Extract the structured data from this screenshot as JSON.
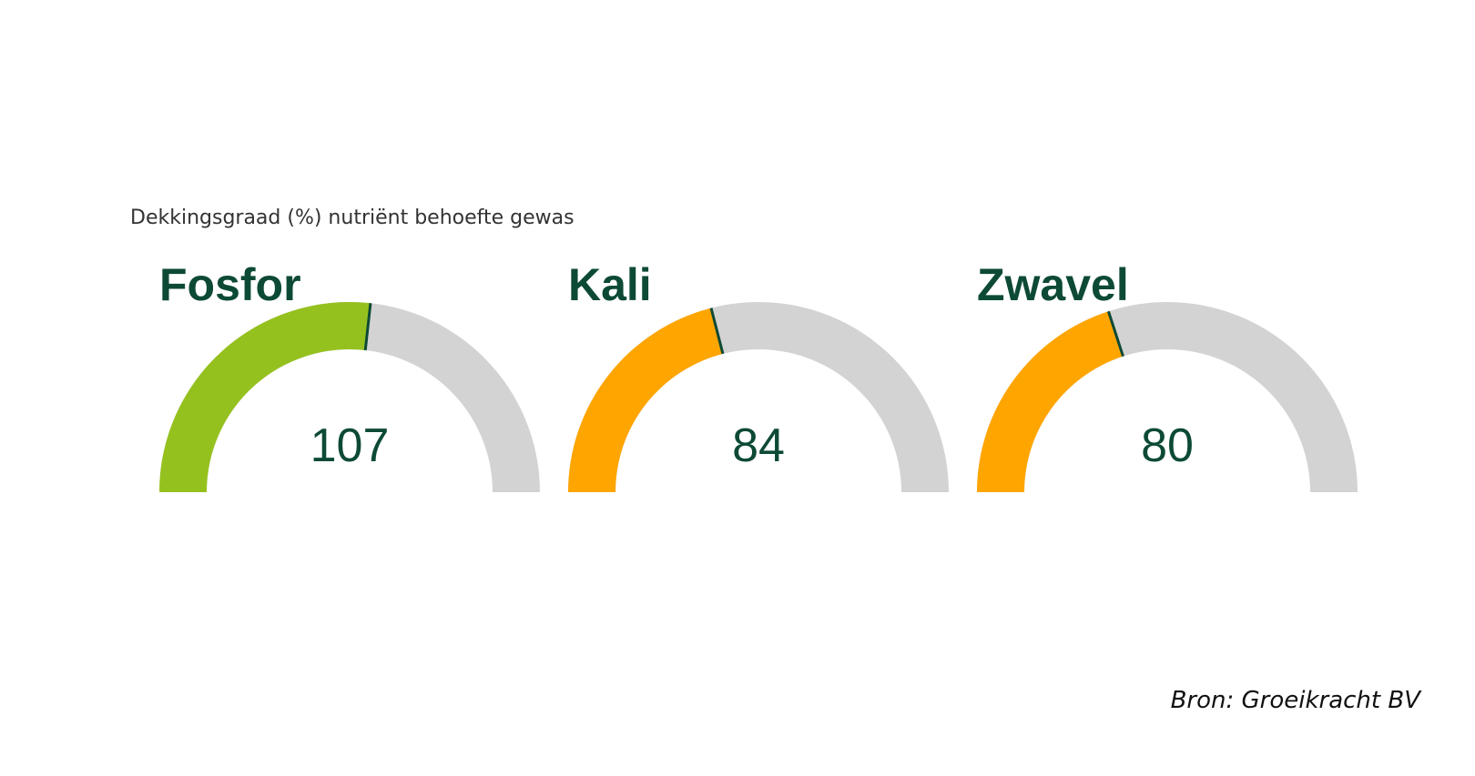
{
  "title": "Dekkingsgraad (%) nutriënt behoefte gewas",
  "source": "Bron: Groeikracht BV",
  "chart_data": [
    {
      "type": "gauge",
      "title": "Fosfor",
      "value": 107,
      "color": "#95c11f",
      "ylim": [
        0,
        200
      ]
    },
    {
      "type": "gauge",
      "title": "Kali",
      "value": 84,
      "color": "#ffa500",
      "ylim": [
        0,
        200
      ]
    },
    {
      "type": "gauge",
      "title": "Zwavel",
      "value": 80,
      "color": "#ffa500",
      "ylim": [
        0,
        200
      ]
    }
  ]
}
